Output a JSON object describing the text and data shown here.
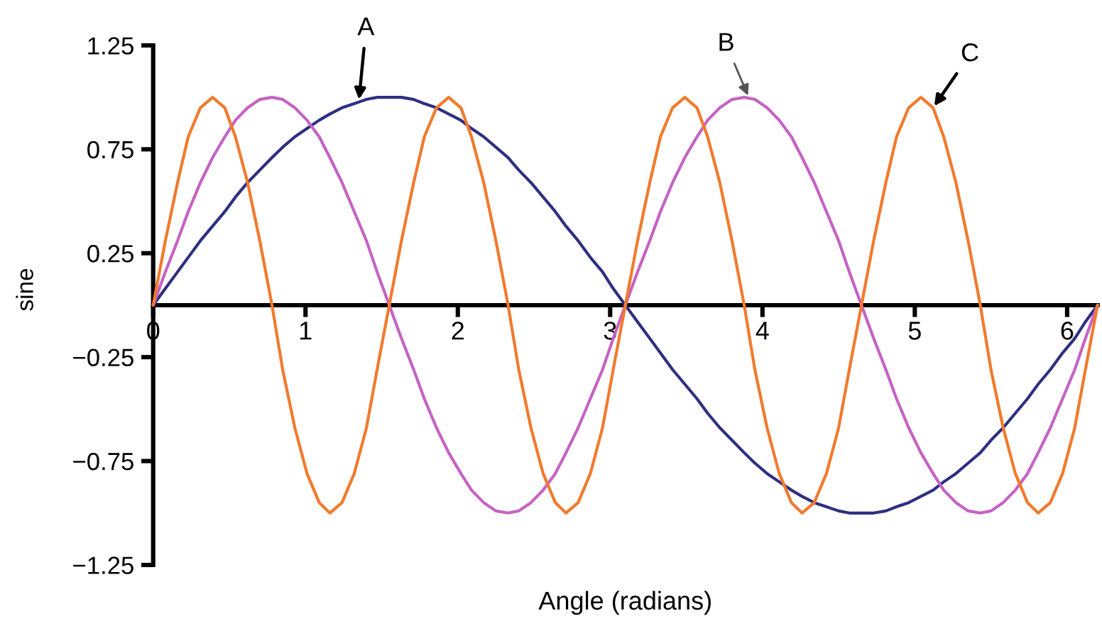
{
  "chart_data": {
    "type": "line",
    "xlabel": "Angle (radians)",
    "ylabel": "sine",
    "x": [
      0,
      0.08,
      0.16,
      0.23,
      0.31,
      0.39,
      0.47,
      0.54,
      0.62,
      0.7,
      0.78,
      0.85,
      0.93,
      1.01,
      1.09,
      1.16,
      1.24,
      1.32,
      1.4,
      1.47,
      1.55,
      1.63,
      1.71,
      1.78,
      1.86,
      1.94,
      2.02,
      2.09,
      2.17,
      2.25,
      2.33,
      2.4,
      2.48,
      2.56,
      2.64,
      2.71,
      2.79,
      2.87,
      2.95,
      3.02,
      3.1,
      3.18,
      3.26,
      3.33,
      3.41,
      3.49,
      3.57,
      3.64,
      3.72,
      3.8,
      3.88,
      3.95,
      4.03,
      4.11,
      4.19,
      4.26,
      4.34,
      4.42,
      4.5,
      4.57,
      4.65,
      4.73,
      4.81,
      4.88,
      4.96,
      5.04,
      5.12,
      5.19,
      5.27,
      5.35,
      5.43,
      5.5,
      5.58,
      5.66,
      5.74,
      5.81,
      5.89,
      5.97,
      6.05,
      6.12,
      6.2
    ],
    "series": [
      {
        "color": "#2e2f80",
        "values": [
          0,
          0.08,
          0.16,
          0.23,
          0.31,
          0.38,
          0.45,
          0.52,
          0.59,
          0.65,
          0.71,
          0.76,
          0.81,
          0.85,
          0.89,
          0.92,
          0.95,
          0.97,
          0.99,
          1.0,
          1.0,
          1.0,
          0.99,
          0.97,
          0.95,
          0.92,
          0.89,
          0.85,
          0.81,
          0.76,
          0.71,
          0.65,
          0.59,
          0.52,
          0.45,
          0.38,
          0.31,
          0.23,
          0.16,
          0.08,
          0,
          -0.08,
          -0.16,
          -0.23,
          -0.31,
          -0.38,
          -0.45,
          -0.52,
          -0.59,
          -0.65,
          -0.71,
          -0.76,
          -0.81,
          -0.85,
          -0.89,
          -0.92,
          -0.95,
          -0.97,
          -0.99,
          -1.0,
          -1.0,
          -1.0,
          -0.99,
          -0.97,
          -0.95,
          -0.92,
          -0.89,
          -0.85,
          -0.81,
          -0.76,
          -0.71,
          -0.65,
          -0.59,
          -0.52,
          -0.45,
          -0.38,
          -0.31,
          -0.23,
          -0.16,
          -0.08,
          0
        ]
      },
      {
        "color": "#c562c4",
        "values": [
          0,
          0.16,
          0.31,
          0.45,
          0.59,
          0.71,
          0.81,
          0.89,
          0.95,
          0.99,
          1.0,
          0.99,
          0.95,
          0.89,
          0.81,
          0.71,
          0.59,
          0.45,
          0.31,
          0.16,
          0,
          -0.16,
          -0.31,
          -0.45,
          -0.59,
          -0.71,
          -0.81,
          -0.89,
          -0.95,
          -0.99,
          -1.0,
          -0.99,
          -0.95,
          -0.89,
          -0.81,
          -0.71,
          -0.59,
          -0.45,
          -0.31,
          -0.16,
          0,
          0.16,
          0.31,
          0.45,
          0.59,
          0.71,
          0.81,
          0.89,
          0.95,
          0.99,
          1.0,
          0.99,
          0.95,
          0.89,
          0.81,
          0.71,
          0.59,
          0.45,
          0.31,
          0.16,
          0,
          -0.16,
          -0.31,
          -0.45,
          -0.59,
          -0.71,
          -0.81,
          -0.89,
          -0.95,
          -0.99,
          -1.0,
          -0.99,
          -0.95,
          -0.89,
          -0.81,
          -0.71,
          -0.59,
          -0.45,
          -0.31,
          -0.16,
          0
        ]
      },
      {
        "color": "#f27a2c",
        "values": [
          0,
          0.31,
          0.59,
          0.81,
          0.95,
          1.0,
          0.95,
          0.81,
          0.59,
          0.31,
          0,
          -0.31,
          -0.59,
          -0.81,
          -0.95,
          -1.0,
          -0.95,
          -0.81,
          -0.59,
          -0.31,
          0,
          0.31,
          0.59,
          0.81,
          0.95,
          1.0,
          0.95,
          0.81,
          0.59,
          0.31,
          0,
          -0.31,
          -0.59,
          -0.81,
          -0.95,
          -1.0,
          -0.95,
          -0.81,
          -0.59,
          -0.31,
          0,
          0.31,
          0.59,
          0.81,
          0.95,
          1.0,
          0.95,
          0.81,
          0.59,
          0.31,
          0,
          -0.31,
          -0.59,
          -0.81,
          -0.95,
          -1.0,
          -0.95,
          -0.81,
          -0.59,
          -0.31,
          0,
          0.31,
          0.59,
          0.81,
          0.95,
          1.0,
          0.95,
          0.81,
          0.59,
          0.31,
          0,
          -0.31,
          -0.59,
          -0.81,
          -0.95,
          -1.0,
          -0.95,
          -0.81,
          -0.59,
          -0.31,
          0
        ]
      }
    ],
    "xlim": [
      0,
      6.2
    ],
    "xticks": [
      0,
      1,
      2,
      3,
      4,
      5,
      6
    ],
    "ylim": [
      -1.25,
      1.25
    ],
    "yticks": [
      {
        "value": -1.25,
        "label": "−1.25"
      },
      {
        "value": -0.75,
        "label": "−0.75"
      },
      {
        "value": -0.25,
        "label": "−0.25"
      },
      0.25,
      0.75,
      1.25
    ],
    "marker": "none",
    "line_style": "solid",
    "annotations": [
      {
        "text": "A",
        "x": 1.35,
        "y": 0.98
      },
      {
        "text": "B",
        "x": 3.91,
        "y": 1.0
      },
      {
        "text": "C",
        "x": 5.12,
        "y": 0.95
      }
    ]
  }
}
